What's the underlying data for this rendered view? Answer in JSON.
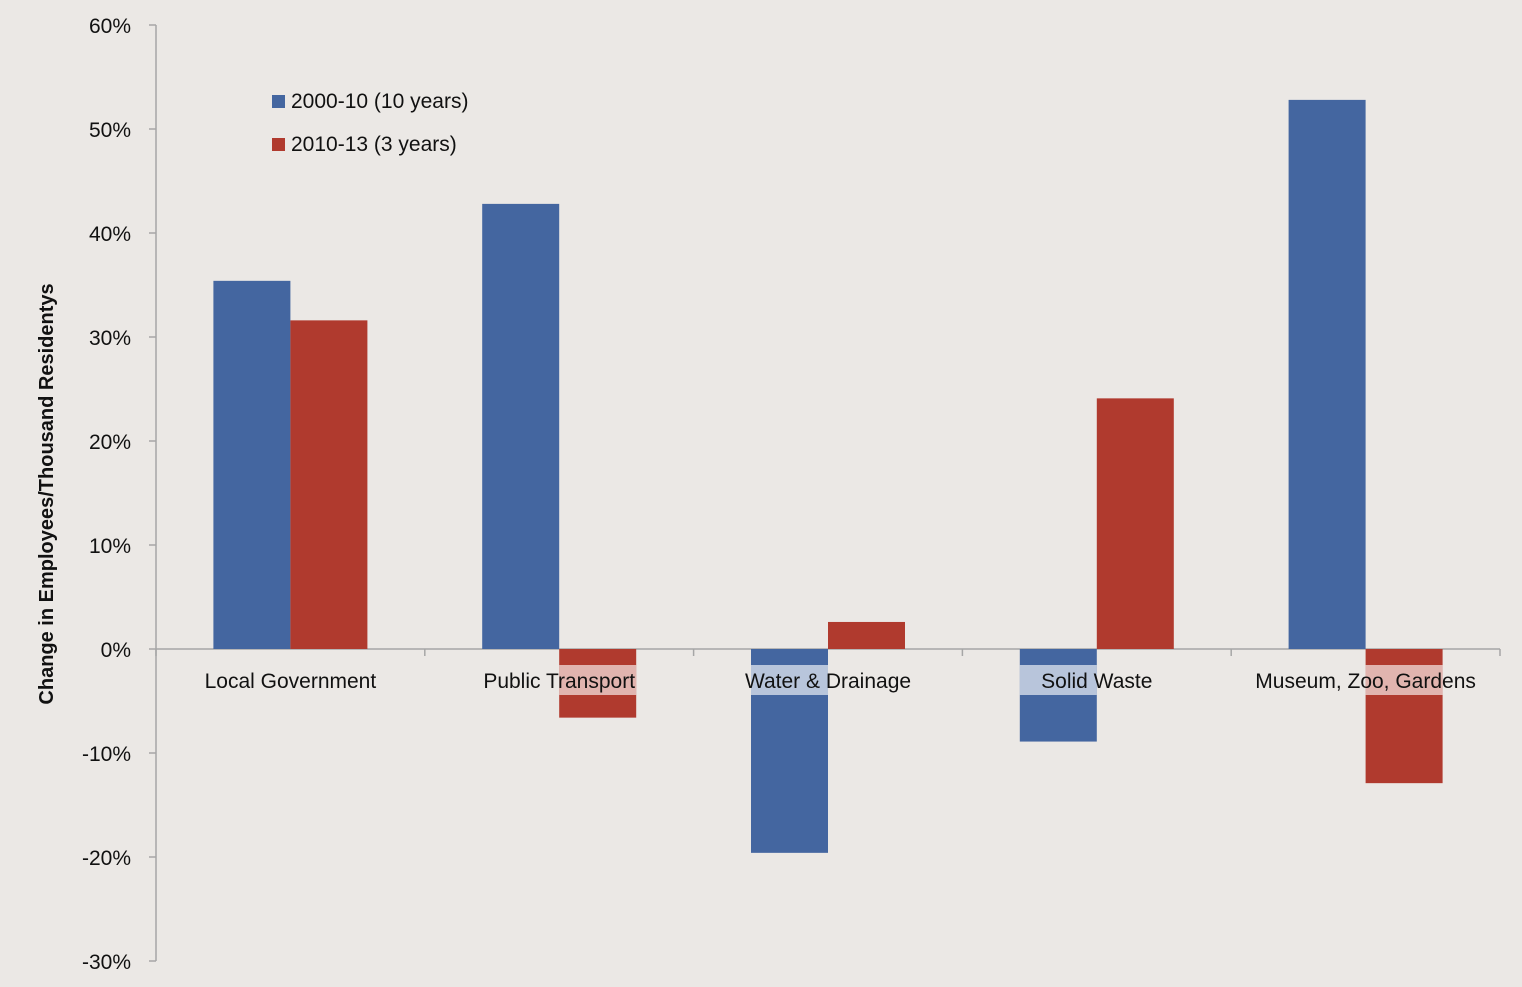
{
  "chart_data": {
    "type": "bar",
    "title": "",
    "xlabel": "",
    "ylabel": "Change in Employees/Thousand Residentys",
    "ylim": [
      -30,
      60
    ],
    "y_ticks": [
      60,
      50,
      40,
      30,
      20,
      10,
      0,
      -10,
      -20,
      -30
    ],
    "y_tick_labels": [
      "60%",
      "50%",
      "40%",
      "30%",
      "20%",
      "10%",
      "0%",
      "-10%",
      "-20%",
      "-30%"
    ],
    "categories": [
      "Local Government",
      "Public Transport",
      "Water & Drainage",
      "Solid Waste",
      "Museum, Zoo, Gardens"
    ],
    "series": [
      {
        "name": "2000-10 (10 years)",
        "color": "#4466a0",
        "values": [
          35.4,
          42.8,
          -19.6,
          -8.9,
          52.8
        ]
      },
      {
        "name": "2010-13 (3 years)",
        "color": "#b03a2e",
        "values": [
          31.6,
          -6.6,
          2.6,
          24.1,
          -12.9
        ]
      }
    ],
    "legend_position": "top-left",
    "grid": false
  }
}
